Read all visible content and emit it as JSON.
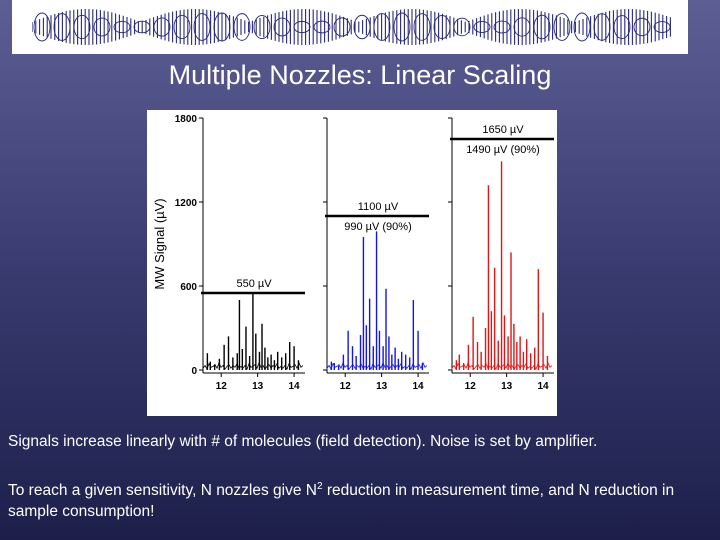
{
  "title": "Multiple Nozzles: Linear Scaling",
  "captions": {
    "line1": "Signals increase linearly with # of molecules (field detection).  Noise is set by amplifier.",
    "line2_a": "To reach a given sensitivity, N nozzles give N",
    "line2_sup": "2",
    "line2_b": " reduction in measurement time, and N reduction in sample consumption!"
  },
  "colors": {
    "panel1": "#000000",
    "panel2": "#1515e0",
    "panel3": "#e01515"
  },
  "chart_data": {
    "type": "line",
    "ylabel": "MW Signal (µV)",
    "ylim": [
      0,
      1800
    ],
    "yticks": [
      0,
      600,
      1200,
      1800
    ],
    "xlim": [
      11.5,
      14.3
    ],
    "xticks": [
      12,
      13,
      14
    ],
    "series": [
      {
        "annotations": [
          {
            "value": 550,
            "label": "550 µV"
          }
        ],
        "peaks": [
          [
            11.62,
            120
          ],
          [
            11.7,
            60
          ],
          [
            11.82,
            40
          ],
          [
            11.95,
            80
          ],
          [
            12.08,
            180
          ],
          [
            12.2,
            240
          ],
          [
            12.32,
            90
          ],
          [
            12.44,
            120
          ],
          [
            12.5,
            500
          ],
          [
            12.58,
            150
          ],
          [
            12.68,
            310
          ],
          [
            12.78,
            100
          ],
          [
            12.87,
            550
          ],
          [
            12.95,
            260
          ],
          [
            13.05,
            130
          ],
          [
            13.12,
            330
          ],
          [
            13.2,
            160
          ],
          [
            13.28,
            90
          ],
          [
            13.37,
            110
          ],
          [
            13.46,
            70
          ],
          [
            13.55,
            130
          ],
          [
            13.66,
            90
          ],
          [
            13.77,
            120
          ],
          [
            13.88,
            200
          ],
          [
            14.0,
            170
          ],
          [
            14.12,
            70
          ]
        ]
      },
      {
        "annotations": [
          {
            "value": 1100,
            "label": "1100 µV"
          },
          {
            "value": 990,
            "label": "990 µV (90%)"
          }
        ],
        "peaks": [
          [
            11.62,
            60
          ],
          [
            11.7,
            50
          ],
          [
            11.82,
            30
          ],
          [
            11.95,
            110
          ],
          [
            12.08,
            280
          ],
          [
            12.2,
            170
          ],
          [
            12.3,
            100
          ],
          [
            12.42,
            250
          ],
          [
            12.5,
            950
          ],
          [
            12.58,
            320
          ],
          [
            12.67,
            510
          ],
          [
            12.77,
            170
          ],
          [
            12.86,
            990
          ],
          [
            12.94,
            280
          ],
          [
            13.04,
            170
          ],
          [
            13.12,
            580
          ],
          [
            13.2,
            240
          ],
          [
            13.28,
            110
          ],
          [
            13.37,
            160
          ],
          [
            13.46,
            80
          ],
          [
            13.55,
            130
          ],
          [
            13.66,
            110
          ],
          [
            13.77,
            90
          ],
          [
            13.87,
            500
          ],
          [
            14.0,
            280
          ],
          [
            14.12,
            50
          ]
        ]
      },
      {
        "annotations": [
          {
            "value": 1650,
            "label": "1650 µV"
          },
          {
            "value": 1490,
            "label": "1490 µV (90%)"
          }
        ],
        "peaks": [
          [
            11.62,
            70
          ],
          [
            11.7,
            110
          ],
          [
            11.82,
            50
          ],
          [
            11.95,
            180
          ],
          [
            12.08,
            380
          ],
          [
            12.2,
            200
          ],
          [
            12.3,
            130
          ],
          [
            12.42,
            300
          ],
          [
            12.5,
            1320
          ],
          [
            12.58,
            420
          ],
          [
            12.67,
            730
          ],
          [
            12.77,
            210
          ],
          [
            12.86,
            1490
          ],
          [
            12.94,
            390
          ],
          [
            13.04,
            240
          ],
          [
            13.12,
            840
          ],
          [
            13.2,
            330
          ],
          [
            13.28,
            200
          ],
          [
            13.37,
            240
          ],
          [
            13.46,
            130
          ],
          [
            13.55,
            220
          ],
          [
            13.66,
            120
          ],
          [
            13.77,
            160
          ],
          [
            13.87,
            720
          ],
          [
            14.0,
            410
          ],
          [
            14.12,
            100
          ]
        ]
      }
    ]
  }
}
